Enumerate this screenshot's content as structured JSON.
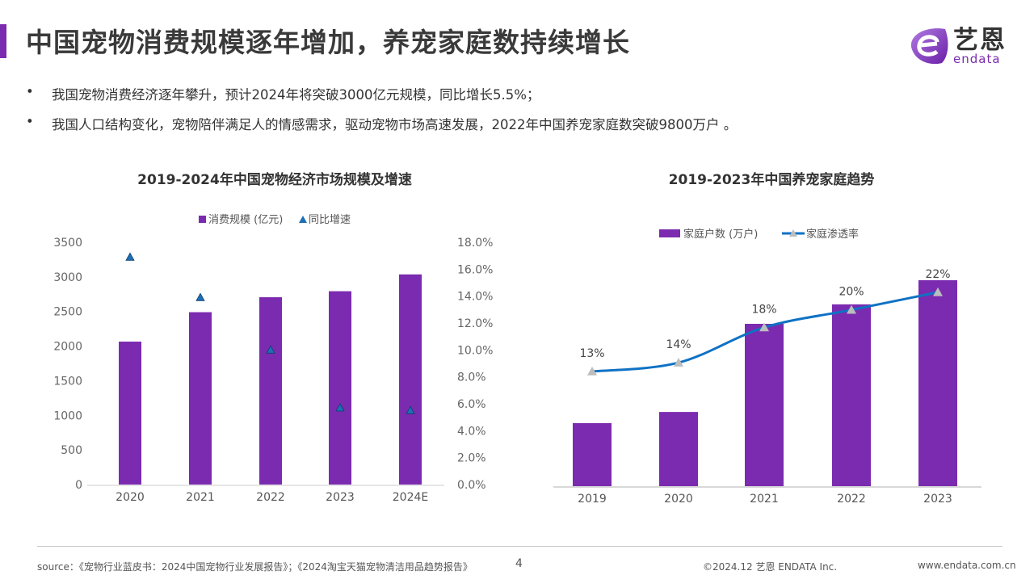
{
  "header": {
    "title": "中国宠物消费规模逐年增加，养宠家庭数持续增长",
    "logo_cn": "艺恩",
    "logo_en": "endata",
    "accent_color": "#7b2bb0"
  },
  "bullets": [
    "我国宠物消费经济逐年攀升，预计2024年将突破3000亿元规模，同比增长5.5%；",
    "我国人口结构变化，宠物陪伴满足人的情感需求，驱动宠物市场高速发展，2022年中国养宠家庭数突破9800万户 。"
  ],
  "chart_data": [
    {
      "type": "bar",
      "title": "2019-2024年中国宠物经济市场规模及增速",
      "categories": [
        "2020",
        "2021",
        "2022",
        "2023",
        "2024E"
      ],
      "series": [
        {
          "name": "消费规模 (亿元)",
          "type": "bar",
          "axis": "left",
          "color": "#7b2bb0",
          "values": [
            2065,
            2490,
            2706,
            2793,
            3036
          ]
        },
        {
          "name": "同比增速",
          "type": "scatter",
          "marker": "triangle",
          "axis": "right",
          "color": "#1f6fb5",
          "values": [
            16.9,
            13.9,
            10.0,
            5.7,
            5.5
          ]
        }
      ],
      "y_left": {
        "range": [
          0,
          3500
        ],
        "ticks": [
          "0",
          "500",
          "1000",
          "1500",
          "2000",
          "2500",
          "3000",
          "3500"
        ]
      },
      "y_right": {
        "range": [
          0,
          18
        ],
        "ticks": [
          "0.0%",
          "2.0%",
          "4.0%",
          "6.0%",
          "8.0%",
          "10.0%",
          "12.0%",
          "14.0%",
          "16.0%",
          "18.0%"
        ]
      },
      "grid": false,
      "legend": "top"
    },
    {
      "type": "bar",
      "title": "2019-2023年中国养宠家庭趋势",
      "categories": [
        "2019",
        "2020",
        "2021",
        "2022",
        "2023"
      ],
      "series": [
        {
          "name": "家庭户数 (万户)",
          "type": "bar",
          "color": "#7b2bb0",
          "values": [
            3400,
            4000,
            8750,
            9800,
            11100
          ]
        },
        {
          "name": "家庭渗透率",
          "type": "line",
          "marker": "triangle",
          "color": "#0f72c4",
          "marker_color": "#bdbdbd",
          "values": [
            13,
            14,
            18,
            20,
            22
          ],
          "labels": [
            "13%",
            "14%",
            "18%",
            "20%",
            "22%"
          ]
        }
      ],
      "grid": false,
      "legend": "top"
    }
  ],
  "footer": {
    "source": "source：《宠物行业蓝皮书：2024中国宠物行业发展报告》；《2024淘宝天猫宠物清洁用品趋势报告》",
    "page": "4",
    "copyright": "©2024.12  艺恩 ENDATA Inc.",
    "website": "www.endata.com.cn"
  }
}
